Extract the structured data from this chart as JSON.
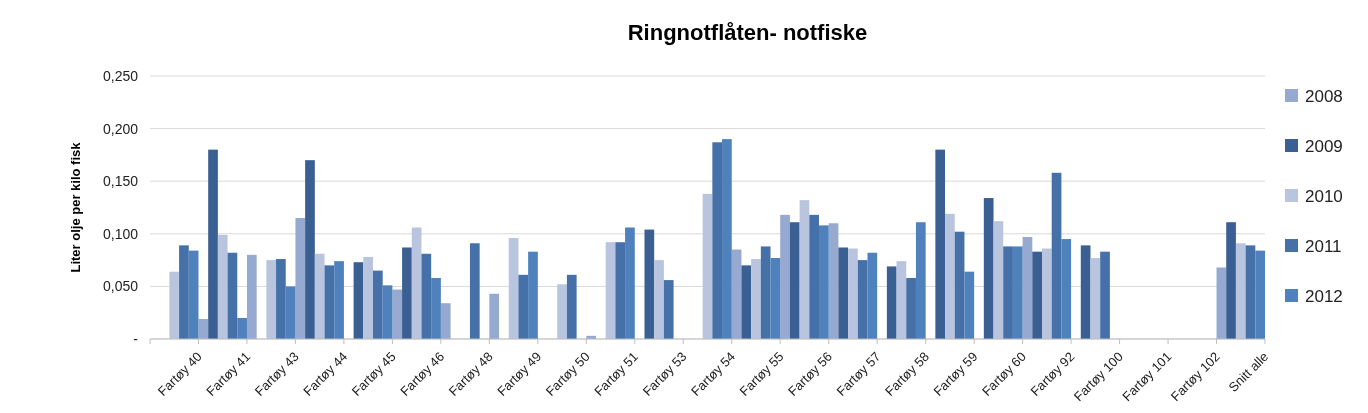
{
  "chart_data": {
    "type": "bar",
    "title": "Ringnotflåten- notfiske",
    "ylabel": "Liter olje per kilo fisk",
    "categories": [
      "Fartøy 40",
      "Fartøy 41",
      "Fartøy 43",
      "Fartøy 44",
      "Fartøy 45",
      "Fartøy 46",
      "Fartøy 48",
      "Fartøy 49",
      "Fartøy 50",
      "Fartøy 51",
      "Fartøy 53",
      "Fartøy 54",
      "Fartøy 55",
      "Fartøy 56",
      "Fartøy 57",
      "Fartøy 58",
      "Fartøy 59",
      "Fartøy 60",
      "Fartøy 92",
      "Fartøy 100",
      "Fartøy 101",
      "Fartøy 102",
      "Snitt alle"
    ],
    "series": [
      {
        "name": "2008",
        "color": "#95a9d1",
        "values": [
          null,
          0.019,
          0.08,
          0.115,
          null,
          0.047,
          0.034,
          0.043,
          null,
          0.003,
          null,
          null,
          0.085,
          0.118,
          0.11,
          null,
          null,
          null,
          0.097,
          null,
          null,
          null,
          0.068
        ]
      },
      {
        "name": "2009",
        "color": "#3a5f92",
        "values": [
          null,
          0.18,
          null,
          0.17,
          0.073,
          0.087,
          null,
          null,
          null,
          null,
          0.104,
          null,
          0.07,
          0.111,
          0.087,
          0.069,
          0.18,
          0.134,
          0.083,
          0.089,
          null,
          null,
          0.111
        ]
      },
      {
        "name": "2010",
        "color": "#b9c5df",
        "values": [
          0.064,
          0.099,
          0.075,
          0.081,
          0.078,
          0.106,
          null,
          0.096,
          0.052,
          0.092,
          0.075,
          0.138,
          0.076,
          0.132,
          0.086,
          0.074,
          0.119,
          0.112,
          0.086,
          0.077,
          null,
          null,
          0.091
        ]
      },
      {
        "name": "2011",
        "color": "#4570a8",
        "values": [
          0.089,
          0.082,
          0.076,
          0.07,
          0.065,
          0.081,
          0.091,
          0.061,
          0.061,
          0.092,
          0.056,
          0.187,
          0.088,
          0.118,
          0.075,
          0.058,
          0.102,
          0.088,
          0.158,
          0.083,
          null,
          null,
          0.089
        ]
      },
      {
        "name": "2012",
        "color": "#4f81bd",
        "values": [
          0.084,
          0.02,
          0.05,
          0.074,
          0.051,
          0.058,
          null,
          0.083,
          null,
          0.106,
          null,
          0.19,
          0.077,
          0.108,
          0.082,
          0.111,
          0.064,
          0.088,
          0.095,
          null,
          null,
          null,
          0.084
        ]
      }
    ],
    "ylim": [
      0,
      0.25
    ],
    "yticks": [
      {
        "value": 0,
        "label": "-"
      },
      {
        "value": 0.05,
        "label": "0,050"
      },
      {
        "value": 0.1,
        "label": "0,100"
      },
      {
        "value": 0.15,
        "label": "0,150"
      },
      {
        "value": 0.2,
        "label": "0,200"
      },
      {
        "value": 0.25,
        "label": "0,250"
      }
    ],
    "grid": "y",
    "legend": "right"
  }
}
